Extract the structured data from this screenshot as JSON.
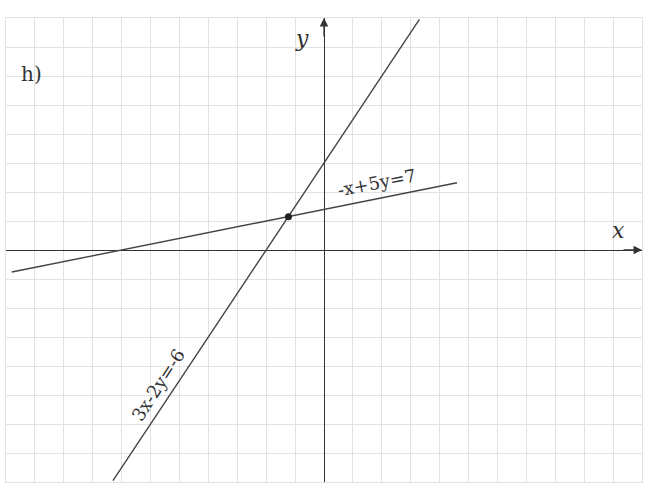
{
  "chart_data": {
    "type": "line",
    "title": "h)",
    "xlabel": "x",
    "ylabel": "y",
    "series": [
      {
        "name": "-x+5y=7",
        "x": [
          -10.8,
          4.6
        ],
        "values": [
          -0.76,
          2.32
        ],
        "color": "#444444"
      },
      {
        "name": "3x-2y=-6",
        "x": [
          -7.3,
          3.3
        ],
        "values": [
          -7.95,
          7.95
        ],
        "color": "#444444"
      },
      {
        "type": "scatter",
        "marker": "circle",
        "x": [
          -1.23
        ],
        "values": [
          1.15
        ],
        "color": "#222222"
      }
    ],
    "xlim": [
      -11,
      11
    ],
    "ylim": [
      -8,
      8
    ],
    "xticks": [
      -11,
      -10,
      -9,
      -8,
      -7,
      -6,
      -5,
      -4,
      -3,
      -2,
      -1,
      0,
      1,
      2,
      3,
      4,
      5,
      6,
      7,
      8,
      9,
      10,
      11
    ],
    "yticks": [
      -8,
      -7,
      -6,
      -5,
      -4,
      -3,
      -2,
      -1,
      0,
      1,
      2,
      3,
      4,
      5,
      6,
      7,
      8
    ],
    "grid": true,
    "tick_labels": false
  }
}
